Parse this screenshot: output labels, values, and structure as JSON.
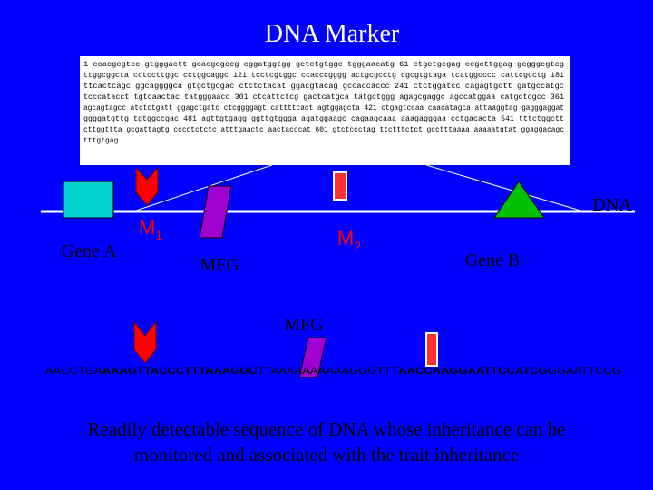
{
  "title": "DNA  Marker",
  "sequence_box": {
    "lines": [
      "1 ccacgcgtcc gtgggactt gcacgcgccg cggatggtgg gctctgtggc tgggaacatg 61 ctgctgcgag ccgcttggag gcgggcgtcg",
      "ttggcggcta cctccttggc cctggcaggc 121 tcctcgtggc ccacccgggg actgcgcctg cgcgtgtaga tcatggcccc cattcgcctg 181",
      "ttcactcagc ggcaggggca gtgctgcgac ctctctacat ggacgtacag gccaccaccc 241 ctctggatcc cagagtgctt gatgccatgc",
      "tcccatacct tgtcaactac tatgggaacc 301 ctcattctcg gactcatgca tatgctggg agagcgaggc agccatggaa catgctcgcc 361",
      "agcagtagcc atctctgatt ggagctgatc ctcggggagt cattttcact agtggagcta 421 ctgagtccaa caacatagca attaaggtag gagggaggat",
      "ggggatgttg tgtggccgac 481 agttgtgagg ggttgtggga agatggaagc cagaagcaaa aaagagggaa cctgacacta 541 tttctggctt",
      "cttggttta gcgattagtg cccctctctc atttgaactc aactacccat 601 gtctccctag ttctttctct gcctttaaaa aaaaatgtat ggaggacagc",
      "tttgtgag"
    ]
  },
  "dna_label": "DNA",
  "gene_a": "Gene A",
  "gene_b": "Gene B",
  "marker_1": {
    "letter": "M",
    "sub": "1"
  },
  "marker_2": {
    "letter": "M",
    "sub": "2"
  },
  "mfg_label": "MFG",
  "mfg_label_2": "MFG",
  "bottom_sequence": [
    {
      "text": "AACCTGA",
      "bold": false
    },
    {
      "text": "AAAGTTACCCTTTAAAGGC",
      "bold": true
    },
    {
      "text": "TTAAAAAAAAAAGGGTTT",
      "bold": false
    },
    {
      "text": "AACCAAGGAATTCCATCG",
      "bold": true
    },
    {
      "text": "GGAATTCCG",
      "bold": false
    }
  ],
  "caption": [
    "Readily detectable sequence of  DNA whose inheritance can be",
    "monitored and associated with the trait inheritance"
  ]
}
